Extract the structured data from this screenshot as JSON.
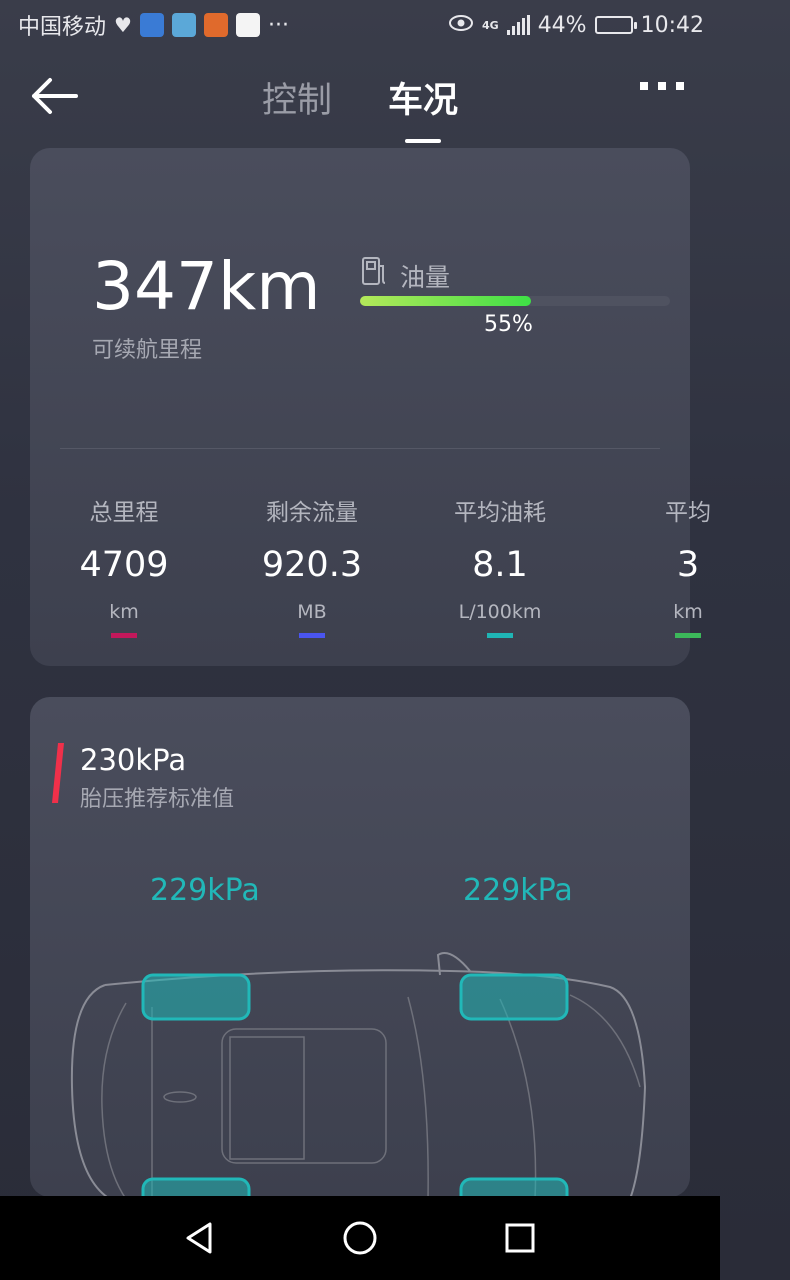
{
  "status_bar": {
    "carrier": "中国移动",
    "more_notifications": "···",
    "network": "4G",
    "battery": "44%",
    "time": "10:42"
  },
  "header": {
    "tabs": [
      {
        "label": "控制",
        "active": false
      },
      {
        "label": "车况",
        "active": true
      }
    ]
  },
  "range_card": {
    "range_value": "347km",
    "range_label": "可续航里程",
    "fuel_label": "油量",
    "fuel_percent_text": "55%",
    "fuel_percent": 55,
    "stats": [
      {
        "label": "总里程",
        "value": "4709",
        "unit": "km",
        "color": "#c2185b"
      },
      {
        "label": "剩余流量",
        "value": "920.3",
        "unit": "MB",
        "color": "#4a55f0"
      },
      {
        "label": "平均油耗",
        "value": "8.1",
        "unit": "L/100km",
        "color": "#1fb5b5"
      },
      {
        "label": "平均",
        "value": "3",
        "unit": "km",
        "color": "#3cb85a"
      }
    ]
  },
  "tire_card": {
    "recommended_value": "230kPa",
    "recommended_label": "胎压推荐标准值",
    "accent_color": "#f0304a",
    "front_left": "229kPa",
    "front_right": "229kPa",
    "tire_color": "#21b8b8"
  }
}
